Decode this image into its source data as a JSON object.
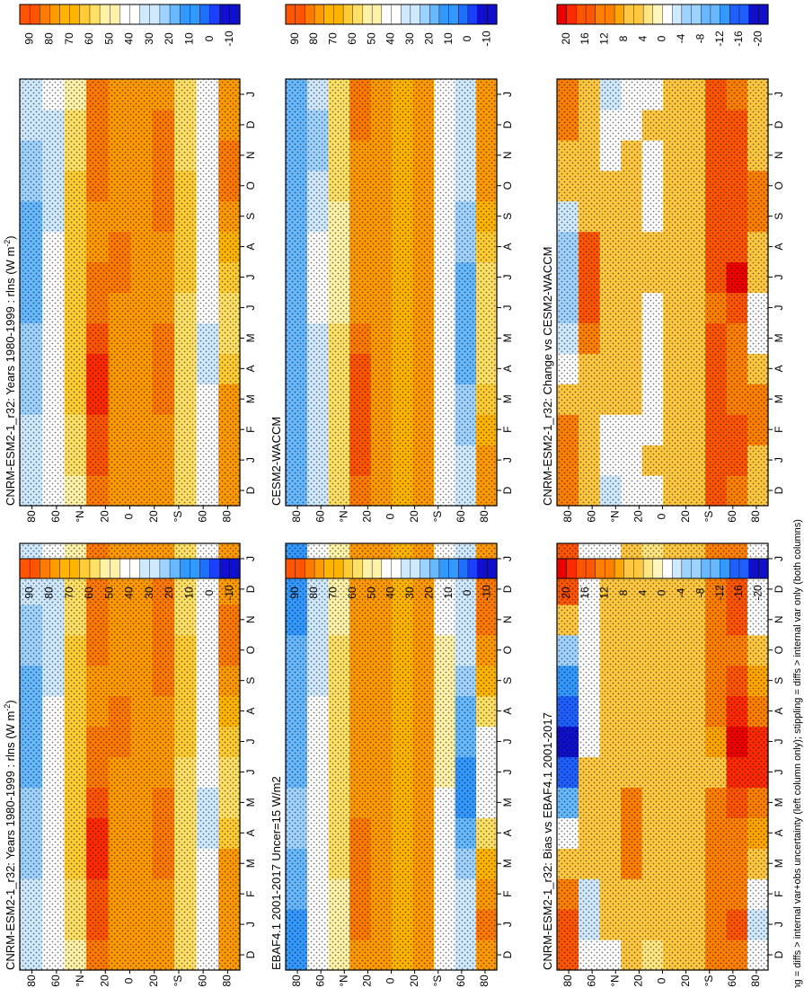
{
  "figure": {
    "caption": "hatching = diffs > internal var+obs uncertainty (left column only); stippling = diffs > internal var only (both columns)",
    "month_labels": [
      "D",
      "J",
      "F",
      "M",
      "A",
      "M",
      "J",
      "J",
      "A",
      "S",
      "O",
      "N",
      "D",
      "J"
    ],
    "lat_labels": [
      "80",
      "60",
      "°N",
      "20",
      "0",
      "20",
      "°S",
      "60",
      "80"
    ]
  },
  "colorbars": {
    "abs": {
      "labels": [
        "90",
        "80",
        "70",
        "60",
        "50",
        "40",
        "30",
        "20",
        "10",
        "0",
        "-10"
      ]
    },
    "diff": {
      "labels": [
        "20",
        "16",
        "12",
        "8",
        "4",
        "0",
        "-4",
        "-8",
        "-12",
        "-16",
        "-20"
      ]
    }
  },
  "panels": [
    {
      "id": "cnrm-r32-left",
      "title": "CNRM-ESM2-1_r32: Years 1980-1999 : rlns (W m",
      "title_sup": "-2",
      "title_tail": ")",
      "cbar": "abs"
    },
    {
      "id": "cnrm-r32-right",
      "title": "CNRM-ESM2-1_r32: Years 1980-1999 : rlns (W m",
      "title_sup": "-2",
      "title_tail": ")",
      "cbar": "abs"
    },
    {
      "id": "ebaf",
      "title": "EBAF4.1 2001-2017 Uncer=15 W/m2",
      "title_sup": "",
      "title_tail": "",
      "cbar": "abs"
    },
    {
      "id": "cesm2",
      "title": "CESM2-WACCM",
      "title_sup": "",
      "title_tail": "",
      "cbar": "abs"
    },
    {
      "id": "bias",
      "title": "CNRM-ESM2-1_r32: Bias vs EBAF4.1 2001-2017",
      "title_sup": "",
      "title_tail": "",
      "cbar": "diff"
    },
    {
      "id": "change",
      "title": "CNRM-ESM2-1_r32: Change vs CESM2-WACCM",
      "title_sup": "",
      "title_tail": "",
      "cbar": "diff"
    }
  ],
  "colors": {
    "abs_scale": [
      "#ff0000",
      "#ff3300",
      "#ff6600",
      "#ff8800",
      "#ffa800",
      "#ffc800",
      "#ffe040",
      "#fff090",
      "#ffffff",
      "#ffffff",
      "#c0e8ff",
      "#80c8ff",
      "#40a8ff",
      "#2080ff",
      "#2040ff",
      "#0000cc"
    ],
    "diff_scale": [
      "#ff0000",
      "#ff3300",
      "#ff6600",
      "#ff8800",
      "#ffa800",
      "#ffc800",
      "#ffe040",
      "#fff090",
      "#ffffff",
      "#ffffff",
      "#c0e8ff",
      "#80c8ff",
      "#40a8ff",
      "#2080ff",
      "#2040ff",
      "#0000cc"
    ]
  },
  "chart_data": [
    {
      "type": "heatmap",
      "title": "CNRM-ESM2-1_r32: Years 1980-1999 : rlns (W m-2)",
      "xlabel": "",
      "ylabel": "",
      "x": [
        "D",
        "J",
        "F",
        "M",
        "A",
        "M",
        "J",
        "J",
        "A",
        "S",
        "O",
        "N",
        "D",
        "J"
      ],
      "y": [
        -90,
        -70,
        -50,
        -30,
        -10,
        10,
        30,
        50,
        70,
        90
      ],
      "values": [
        [
          70,
          75,
          75,
          70,
          60,
          55,
          55,
          60,
          65,
          75,
          80,
          80,
          75,
          70
        ],
        [
          40,
          45,
          40,
          35,
          30,
          30,
          35,
          40,
          40,
          40,
          45,
          45,
          45,
          40
        ],
        [
          55,
          55,
          55,
          55,
          55,
          55,
          55,
          60,
          60,
          60,
          60,
          55,
          55,
          55
        ],
        [
          75,
          75,
          75,
          80,
          80,
          80,
          75,
          75,
          75,
          80,
          80,
          80,
          80,
          75
        ],
        [
          70,
          70,
          70,
          70,
          70,
          70,
          70,
          70,
          70,
          70,
          70,
          70,
          70,
          70
        ],
        [
          70,
          75,
          75,
          75,
          75,
          75,
          75,
          80,
          80,
          75,
          75,
          75,
          75,
          70
        ],
        [
          80,
          85,
          85,
          90,
          90,
          85,
          80,
          80,
          75,
          75,
          80,
          80,
          80,
          80
        ],
        [
          50,
          55,
          55,
          60,
          60,
          60,
          60,
          60,
          60,
          60,
          60,
          55,
          55,
          50
        ],
        [
          35,
          35,
          35,
          40,
          40,
          45,
          45,
          40,
          35,
          30,
          30,
          30,
          30,
          35
        ],
        [
          30,
          30,
          30,
          25,
          25,
          25,
          20,
          20,
          20,
          20,
          25,
          25,
          30,
          30
        ]
      ],
      "colorbar": [
        "90",
        "80",
        "70",
        "60",
        "50",
        "40",
        "30",
        "20",
        "10",
        "0",
        "-10"
      ]
    },
    {
      "type": "heatmap",
      "title": "CNRM-ESM2-1_r32: Years 1980-1999 : rlns (W m-2)",
      "xlabel": "",
      "ylabel": "",
      "x": [
        "D",
        "J",
        "F",
        "M",
        "A",
        "M",
        "J",
        "J",
        "A",
        "S",
        "O",
        "N",
        "D",
        "J"
      ],
      "y": [
        -90,
        -70,
        -50,
        -30,
        -10,
        10,
        30,
        50,
        70,
        90
      ],
      "values": [
        [
          70,
          75,
          75,
          70,
          60,
          55,
          55,
          60,
          65,
          75,
          80,
          80,
          75,
          70
        ],
        [
          40,
          45,
          40,
          35,
          30,
          30,
          35,
          40,
          40,
          40,
          45,
          45,
          45,
          40
        ],
        [
          55,
          55,
          55,
          55,
          55,
          55,
          55,
          60,
          60,
          60,
          60,
          55,
          55,
          55
        ],
        [
          75,
          75,
          75,
          80,
          80,
          80,
          75,
          75,
          75,
          80,
          80,
          80,
          80,
          75
        ],
        [
          70,
          70,
          70,
          70,
          70,
          70,
          70,
          70,
          70,
          70,
          70,
          70,
          70,
          70
        ],
        [
          70,
          75,
          75,
          75,
          75,
          75,
          75,
          80,
          80,
          75,
          75,
          75,
          75,
          70
        ],
        [
          80,
          85,
          85,
          90,
          90,
          85,
          80,
          80,
          75,
          75,
          80,
          80,
          80,
          80
        ],
        [
          50,
          55,
          55,
          60,
          60,
          60,
          60,
          60,
          60,
          60,
          60,
          55,
          55,
          50
        ],
        [
          35,
          35,
          35,
          40,
          40,
          45,
          45,
          40,
          35,
          30,
          30,
          30,
          30,
          35
        ],
        [
          30,
          30,
          30,
          25,
          25,
          25,
          20,
          20,
          20,
          20,
          25,
          25,
          30,
          30
        ]
      ],
      "colorbar": [
        "90",
        "80",
        "70",
        "60",
        "50",
        "40",
        "30",
        "20",
        "10",
        "0",
        "-10"
      ]
    },
    {
      "type": "heatmap",
      "title": "EBAF4.1 2001-2017 Uncer=15 W/m2",
      "xlabel": "",
      "ylabel": "",
      "x": [
        "D",
        "J",
        "F",
        "M",
        "A",
        "M",
        "J",
        "J",
        "A",
        "S",
        "O",
        "N",
        "D",
        "J"
      ],
      "y": [
        -90,
        -70,
        -50,
        -30,
        -10,
        10,
        30,
        50,
        70,
        90
      ],
      "values": [
        [
          75,
          80,
          75,
          65,
          55,
          45,
          40,
          45,
          55,
          65,
          75,
          80,
          80,
          75
        ],
        [
          30,
          30,
          30,
          25,
          20,
          15,
          15,
          20,
          20,
          25,
          30,
          30,
          30,
          30
        ],
        [
          45,
          45,
          45,
          45,
          45,
          45,
          50,
          50,
          50,
          50,
          50,
          45,
          45,
          45
        ],
        [
          70,
          70,
          70,
          75,
          75,
          75,
          70,
          70,
          70,
          75,
          75,
          75,
          75,
          70
        ],
        [
          65,
          65,
          65,
          65,
          65,
          65,
          65,
          65,
          65,
          65,
          65,
          65,
          65,
          65
        ],
        [
          70,
          70,
          70,
          70,
          70,
          70,
          70,
          75,
          75,
          70,
          70,
          70,
          70,
          70
        ],
        [
          75,
          80,
          80,
          80,
          80,
          75,
          75,
          75,
          70,
          70,
          75,
          75,
          75,
          75
        ],
        [
          50,
          50,
          50,
          55,
          55,
          55,
          55,
          55,
          55,
          55,
          55,
          50,
          50,
          50
        ],
        [
          35,
          35,
          35,
          35,
          35,
          40,
          40,
          40,
          35,
          30,
          30,
          30,
          30,
          35
        ],
        [
          15,
          15,
          20,
          20,
          25,
          25,
          20,
          20,
          20,
          20,
          20,
          15,
          15,
          15
        ]
      ],
      "colorbar": [
        "90",
        "80",
        "70",
        "60",
        "50",
        "40",
        "30",
        "20",
        "10",
        "0",
        "-10"
      ]
    },
    {
      "type": "heatmap",
      "title": "CESM2-WACCM",
      "xlabel": "",
      "ylabel": "",
      "x": [
        "D",
        "J",
        "F",
        "M",
        "A",
        "M",
        "J",
        "J",
        "A",
        "S",
        "O",
        "N",
        "D",
        "J"
      ],
      "y": [
        -90,
        -70,
        -50,
        -30,
        -10,
        10,
        30,
        50,
        70,
        90
      ],
      "values": [
        [
          70,
          70,
          65,
          60,
          55,
          55,
          55,
          55,
          60,
          65,
          70,
          75,
          70,
          70
        ],
        [
          30,
          30,
          25,
          25,
          20,
          20,
          20,
          20,
          25,
          25,
          30,
          30,
          30,
          30
        ],
        [
          40,
          40,
          40,
          40,
          40,
          40,
          45,
          45,
          45,
          45,
          45,
          40,
          40,
          40
        ],
        [
          70,
          70,
          70,
          75,
          75,
          75,
          70,
          70,
          70,
          75,
          75,
          75,
          75,
          70
        ],
        [
          65,
          65,
          65,
          65,
          65,
          65,
          65,
          65,
          65,
          65,
          65,
          65,
          65,
          65
        ],
        [
          70,
          70,
          75,
          75,
          75,
          75,
          75,
          75,
          75,
          75,
          75,
          75,
          70,
          70
        ],
        [
          80,
          85,
          85,
          85,
          85,
          80,
          75,
          75,
          70,
          70,
          75,
          75,
          80,
          80
        ],
        [
          55,
          55,
          55,
          55,
          55,
          55,
          50,
          50,
          50,
          50,
          55,
          55,
          55,
          55
        ],
        [
          30,
          30,
          30,
          30,
          30,
          30,
          35,
          35,
          35,
          30,
          30,
          25,
          25,
          30
        ],
        [
          20,
          20,
          20,
          20,
          20,
          20,
          20,
          20,
          20,
          20,
          20,
          20,
          20,
          20
        ]
      ],
      "colorbar": [
        "90",
        "80",
        "70",
        "60",
        "50",
        "40",
        "30",
        "20",
        "10",
        "0",
        "-10"
      ]
    },
    {
      "type": "heatmap",
      "title": "CNRM-ESM2-1_r32: Bias vs EBAF4.1 2001-2017",
      "xlabel": "",
      "ylabel": "",
      "x": [
        "D",
        "J",
        "F",
        "M",
        "A",
        "M",
        "J",
        "J",
        "A",
        "S",
        "O",
        "N",
        "D",
        "J"
      ],
      "y": [
        -90,
        -70,
        -50,
        -30,
        -10,
        10,
        30,
        50,
        70,
        90
      ],
      "values": [
        [
          -2,
          -4,
          0,
          4,
          8,
          12,
          16,
          16,
          12,
          8,
          4,
          0,
          -2,
          -2
        ],
        [
          10,
          14,
          12,
          10,
          10,
          14,
          18,
          20,
          18,
          14,
          12,
          14,
          14,
          10
        ],
        [
          10,
          10,
          10,
          10,
          10,
          10,
          6,
          8,
          10,
          10,
          10,
          10,
          10,
          10
        ],
        [
          6,
          6,
          6,
          6,
          6,
          6,
          6,
          6,
          6,
          6,
          6,
          6,
          6,
          6
        ],
        [
          6,
          6,
          6,
          6,
          6,
          6,
          6,
          6,
          6,
          6,
          6,
          6,
          6,
          6
        ],
        [
          2,
          4,
          4,
          6,
          6,
          6,
          4,
          4,
          4,
          6,
          6,
          6,
          6,
          2
        ],
        [
          6,
          6,
          6,
          10,
          10,
          10,
          6,
          6,
          6,
          6,
          6,
          6,
          6,
          6
        ],
        [
          0,
          4,
          4,
          6,
          6,
          6,
          6,
          6,
          6,
          6,
          6,
          6,
          6,
          0
        ],
        [
          0,
          -4,
          -4,
          4,
          6,
          6,
          6,
          0,
          0,
          0,
          0,
          0,
          0,
          0
        ],
        [
          14,
          14,
          10,
          4,
          -2,
          -10,
          -14,
          -18,
          -16,
          -12,
          -6,
          6,
          14,
          14
        ]
      ],
      "colorbar": [
        "20",
        "16",
        "12",
        "8",
        "4",
        "0",
        "-4",
        "-8",
        "-12",
        "-16",
        "-20"
      ]
    },
    {
      "type": "heatmap",
      "title": "CNRM-ESM2-1_r32: Change vs CESM2-WACCM",
      "xlabel": "",
      "ylabel": "",
      "x": [
        "D",
        "J",
        "F",
        "M",
        "A",
        "M",
        "J",
        "J",
        "A",
        "S",
        "O",
        "N",
        "D",
        "J"
      ],
      "y": [
        -90,
        -70,
        -50,
        -30,
        -10,
        10,
        30,
        50,
        70,
        90
      ],
      "values": [
        [
          4,
          6,
          10,
          10,
          6,
          0,
          0,
          6,
          6,
          10,
          10,
          6,
          4,
          4
        ],
        [
          10,
          14,
          14,
          10,
          10,
          10,
          14,
          20,
          14,
          14,
          14,
          14,
          14,
          10
        ],
        [
          14,
          14,
          14,
          14,
          14,
          14,
          10,
          14,
          14,
          14,
          14,
          14,
          14,
          14
        ],
        [
          4,
          4,
          4,
          4,
          4,
          4,
          4,
          4,
          4,
          4,
          4,
          4,
          4,
          4
        ],
        [
          6,
          6,
          6,
          6,
          6,
          6,
          6,
          6,
          6,
          6,
          6,
          6,
          6,
          6
        ],
        [
          0,
          4,
          0,
          0,
          0,
          0,
          0,
          4,
          4,
          0,
          0,
          0,
          4,
          0
        ],
        [
          0,
          0,
          0,
          4,
          4,
          4,
          4,
          4,
          4,
          4,
          4,
          4,
          0,
          0
        ],
        [
          -4,
          0,
          0,
          4,
          4,
          4,
          4,
          6,
          6,
          6,
          4,
          0,
          0,
          -4
        ],
        [
          4,
          4,
          4,
          6,
          6,
          10,
          14,
          14,
          14,
          6,
          4,
          4,
          4,
          4
        ],
        [
          10,
          10,
          10,
          6,
          0,
          -4,
          -6,
          -6,
          -6,
          -4,
          4,
          6,
          10,
          10
        ]
      ],
      "colorbar": [
        "20",
        "16",
        "12",
        "8",
        "4",
        "0",
        "-4",
        "-8",
        "-12",
        "-16",
        "-20"
      ]
    }
  ]
}
